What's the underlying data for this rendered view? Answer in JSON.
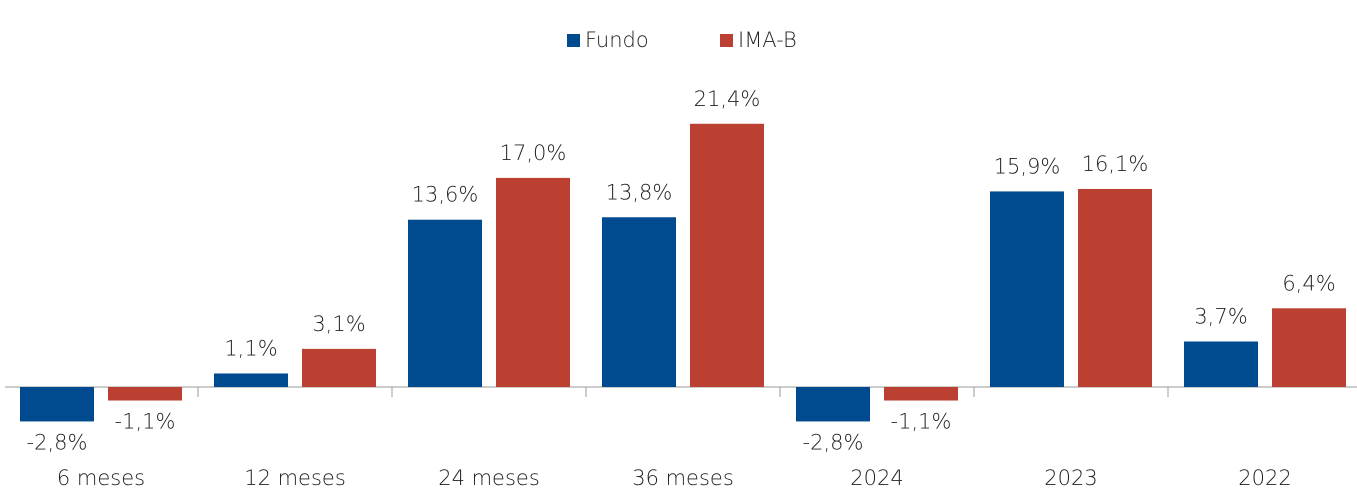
{
  "chart_data": {
    "type": "bar",
    "categories": [
      "6 meses",
      "12 meses",
      "24 meses",
      "36 meses",
      "2024",
      "2023",
      "2022"
    ],
    "series": [
      {
        "name": "Fundo",
        "color": "#004a8f",
        "values": [
          -2.8,
          1.1,
          13.6,
          13.8,
          -2.8,
          15.9,
          3.7
        ],
        "value_labels": [
          "-2,8%",
          "1,1%",
          "13,6%",
          "13,8%",
          "-2,8%",
          "15,9%",
          "3,7%"
        ]
      },
      {
        "name": "IMA-B",
        "color": "#bc4031",
        "values": [
          -1.1,
          3.1,
          17.0,
          21.4,
          -1.1,
          16.1,
          6.4
        ],
        "value_labels": [
          "-1,1%",
          "3,1%",
          "17,0%",
          "21,4%",
          "-1,1%",
          "16,1%",
          "6,4%"
        ]
      }
    ],
    "ylim": [
      -6,
      25
    ],
    "legend": "top"
  }
}
